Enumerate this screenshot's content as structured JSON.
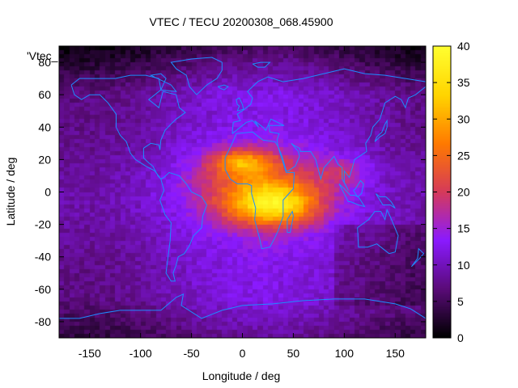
{
  "chart_data": {
    "type": "heatmap",
    "title": "VTEC / TECU 20200308_068.45900",
    "xlabel": "Longitude / deg",
    "ylabel": "Latitude / deg",
    "xlim": [
      -180,
      180
    ],
    "ylim": [
      -90,
      90
    ],
    "xticks": [
      -150,
      -100,
      -50,
      0,
      50,
      100,
      150
    ],
    "yticks": [
      -80,
      -60,
      -40,
      -20,
      0,
      20,
      40,
      60,
      80
    ],
    "colorbar": {
      "range": [
        0,
        40
      ],
      "ticks": [
        0,
        5,
        10,
        15,
        20,
        25,
        30,
        35,
        40
      ]
    },
    "key_label": "'Vtec_",
    "colormap": [
      "#000000",
      "#5a0b78",
      "#8a1aff",
      "#d63a5a",
      "#ff7a00",
      "#ffd500",
      "#ffff30"
    ],
    "coastline_color": "#1e8cff",
    "peaks": [
      {
        "lon": 30,
        "lat": -8,
        "value": 38
      },
      {
        "lon": 0,
        "lat": 18,
        "value": 32
      }
    ],
    "grid": false
  }
}
